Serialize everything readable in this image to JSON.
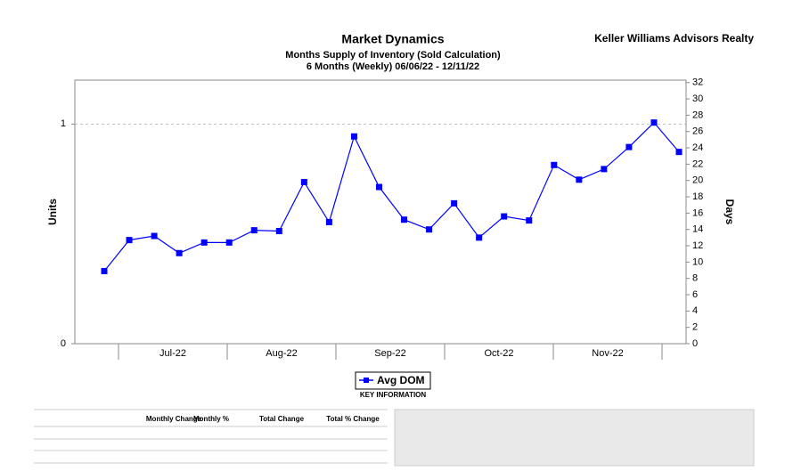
{
  "chart_data": {
    "type": "line",
    "title": "Market Dynamics",
    "subtitle": [
      "Months Supply of Inventory (Sold Calculation)",
      "6 Months (Weekly) 06/06/22 - 12/11/22"
    ],
    "brand": "Keller Williams Advisors Realty",
    "ylabel": "Units",
    "y2label": "Days",
    "month_labels": [
      "Jul-22",
      "Aug-22",
      "Sep-22",
      "Oct-22",
      "Nov-22"
    ],
    "ylim": [
      0,
      1.2
    ],
    "yticks": [
      0,
      1
    ],
    "y2lim": [
      0,
      32.3
    ],
    "y2ticks": [
      0,
      2,
      4,
      6,
      8,
      10,
      12,
      14,
      16,
      18,
      20,
      22,
      24,
      26,
      28,
      30,
      32
    ],
    "grid": true,
    "series": [
      {
        "name": "Avg DOM",
        "color": "#0000ff",
        "axis": "y2",
        "values": [
          8.9,
          12.7,
          13.2,
          11.1,
          12.4,
          12.4,
          13.9,
          13.8,
          19.8,
          14.9,
          25.4,
          19.2,
          15.2,
          14.0,
          17.2,
          13.0,
          15.6,
          15.1,
          21.9,
          20.1,
          21.4,
          24.1,
          27.1,
          23.5
        ]
      }
    ],
    "legend_caption": "KEY INFORMATION",
    "table_headers": [
      "Monthly Change",
      "Monthly %",
      "Total Change",
      "Total % Change"
    ]
  }
}
